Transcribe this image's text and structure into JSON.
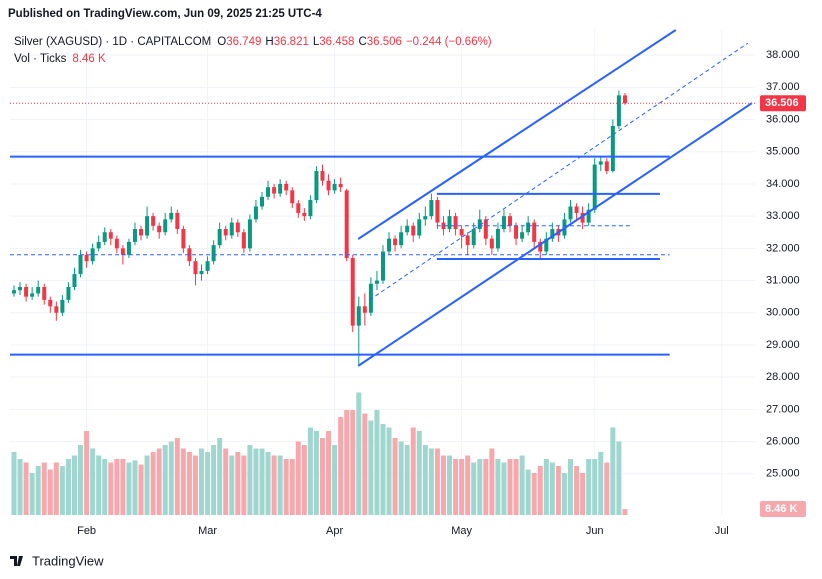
{
  "chart_data": {
    "type": "candlestick",
    "published": "Published on TradingView.com, Jun 09, 2025 21:25 UTC-4",
    "title": "Silver (XAGUSD) · 1D · CAPITALCOM",
    "ohlc_labels": [
      "O",
      "H",
      "L",
      "C"
    ],
    "change_label": "−0.244 (−0.66%)",
    "volume_title": "Vol · Ticks",
    "volume_label": "8.46 K",
    "footer": "TradingView",
    "up_color": "#089981",
    "down_color": "#f23645",
    "volume_up_color": "#9fd6cf",
    "volume_down_color": "#f7a8ad",
    "line_color": "#2962ff",
    "grid": true,
    "xlim": [
      -0.66,
      122.5
    ],
    "xticks": [
      {
        "value": 12,
        "label": "Feb"
      },
      {
        "value": 32,
        "label": "Mar"
      },
      {
        "value": 53,
        "label": "Apr"
      },
      {
        "value": 74,
        "label": "May"
      },
      {
        "value": 96,
        "label": "Jun"
      },
      {
        "value": 117,
        "label": "Jul"
      }
    ],
    "ylim": [
      23.72,
      38.78
    ],
    "yticks": [
      {
        "value": 25,
        "label": "25.000"
      },
      {
        "value": 26,
        "label": "26.000"
      },
      {
        "value": 27,
        "label": "27.000"
      },
      {
        "value": 28,
        "label": "28.000"
      },
      {
        "value": 29,
        "label": "29.000"
      },
      {
        "value": 30,
        "label": "30.000"
      },
      {
        "value": 31,
        "label": "31.000"
      },
      {
        "value": 32,
        "label": "32.000"
      },
      {
        "value": 33,
        "label": "33.000"
      },
      {
        "value": 34,
        "label": "34.000"
      },
      {
        "value": 35,
        "label": "35.000"
      },
      {
        "value": 36,
        "label": "36.000"
      },
      {
        "value": 37,
        "label": "37.000"
      },
      {
        "value": 38,
        "label": "38.000"
      }
    ],
    "volume_ylim": [
      0,
      200
    ],
    "ohlc": [
      [
        30.6,
        30.85,
        30.5,
        30.7
      ],
      [
        30.7,
        30.95,
        30.55,
        30.8
      ],
      [
        30.8,
        30.9,
        30.35,
        30.5
      ],
      [
        30.5,
        30.8,
        30.4,
        30.6
      ],
      [
        30.6,
        31.0,
        30.5,
        30.8
      ],
      [
        30.8,
        30.9,
        30.25,
        30.4
      ],
      [
        30.4,
        30.5,
        30.0,
        30.2
      ],
      [
        30.2,
        30.35,
        29.75,
        30.0
      ],
      [
        30.0,
        30.55,
        29.9,
        30.4
      ],
      [
        30.4,
        30.95,
        30.3,
        30.8
      ],
      [
        30.8,
        31.4,
        30.7,
        31.2
      ],
      [
        31.2,
        31.95,
        31.1,
        31.8
      ],
      [
        31.8,
        31.9,
        31.4,
        31.6
      ],
      [
        31.6,
        32.15,
        31.5,
        32.0
      ],
      [
        32.0,
        32.4,
        31.9,
        32.2
      ],
      [
        32.2,
        32.65,
        32.1,
        32.5
      ],
      [
        32.5,
        32.6,
        32.1,
        32.3
      ],
      [
        32.3,
        32.4,
        31.85,
        32.0
      ],
      [
        32.0,
        32.1,
        31.5,
        31.8
      ],
      [
        31.8,
        32.3,
        31.7,
        32.2
      ],
      [
        32.2,
        32.8,
        32.1,
        32.6
      ],
      [
        32.6,
        32.7,
        32.25,
        32.4
      ],
      [
        32.4,
        33.3,
        32.3,
        33.0
      ],
      [
        33.0,
        33.1,
        32.55,
        32.7
      ],
      [
        32.7,
        32.8,
        32.3,
        32.5
      ],
      [
        32.5,
        33.1,
        32.4,
        32.9
      ],
      [
        32.9,
        33.3,
        32.8,
        33.1
      ],
      [
        33.1,
        33.2,
        32.45,
        32.6
      ],
      [
        32.6,
        32.7,
        31.85,
        32.0
      ],
      [
        32.0,
        32.1,
        31.45,
        31.6
      ],
      [
        31.6,
        31.7,
        30.85,
        31.2
      ],
      [
        31.2,
        31.5,
        31.0,
        31.3
      ],
      [
        31.3,
        31.75,
        31.2,
        31.6
      ],
      [
        31.6,
        32.25,
        31.5,
        32.1
      ],
      [
        32.1,
        32.8,
        32.0,
        32.6
      ],
      [
        32.6,
        32.7,
        32.25,
        32.4
      ],
      [
        32.4,
        32.95,
        32.3,
        32.8
      ],
      [
        32.8,
        32.9,
        32.35,
        32.5
      ],
      [
        32.5,
        32.6,
        31.85,
        32.0
      ],
      [
        32.0,
        33.05,
        31.9,
        32.9
      ],
      [
        32.9,
        33.5,
        32.8,
        33.3
      ],
      [
        33.3,
        33.75,
        33.2,
        33.6
      ],
      [
        33.6,
        34.1,
        33.5,
        33.9
      ],
      [
        33.9,
        34.0,
        33.55,
        33.7
      ],
      [
        33.7,
        34.15,
        33.6,
        34.0
      ],
      [
        34.0,
        34.1,
        33.65,
        33.8
      ],
      [
        33.8,
        33.9,
        33.25,
        33.4
      ],
      [
        33.4,
        33.5,
        32.95,
        33.1
      ],
      [
        33.1,
        33.25,
        32.85,
        33.0
      ],
      [
        33.0,
        33.65,
        32.9,
        33.5
      ],
      [
        33.5,
        34.55,
        33.4,
        34.4
      ],
      [
        34.4,
        34.6,
        33.95,
        34.1
      ],
      [
        34.1,
        34.3,
        33.65,
        33.8
      ],
      [
        33.8,
        34.15,
        33.7,
        34.0
      ],
      [
        34.0,
        34.2,
        33.75,
        33.9
      ],
      [
        33.8,
        33.85,
        31.6,
        31.7
      ],
      [
        31.7,
        31.8,
        29.4,
        29.6
      ],
      [
        29.6,
        30.5,
        28.4,
        30.2
      ],
      [
        30.2,
        30.6,
        29.6,
        30.0
      ],
      [
        30.0,
        31.1,
        29.9,
        30.9
      ],
      [
        30.9,
        31.3,
        30.7,
        31.0
      ],
      [
        31.0,
        32.1,
        30.9,
        31.9
      ],
      [
        31.9,
        32.5,
        31.8,
        32.3
      ],
      [
        32.3,
        32.4,
        31.9,
        32.1
      ],
      [
        32.1,
        32.7,
        32.0,
        32.5
      ],
      [
        32.5,
        32.9,
        32.4,
        32.7
      ],
      [
        32.7,
        32.8,
        32.2,
        32.4
      ],
      [
        32.4,
        33.1,
        32.3,
        32.9
      ],
      [
        32.9,
        33.3,
        32.7,
        33.0
      ],
      [
        33.0,
        33.7,
        32.9,
        33.5
      ],
      [
        33.5,
        33.6,
        32.6,
        32.8
      ],
      [
        32.8,
        33.0,
        32.4,
        32.6
      ],
      [
        32.6,
        33.2,
        32.5,
        33.0
      ],
      [
        33.0,
        33.1,
        32.4,
        32.6
      ],
      [
        32.6,
        32.7,
        32.0,
        32.4
      ],
      [
        32.4,
        32.5,
        31.8,
        32.1
      ],
      [
        32.1,
        32.8,
        32.0,
        32.6
      ],
      [
        32.6,
        33.2,
        32.5,
        32.9
      ],
      [
        32.9,
        33.0,
        32.1,
        32.3
      ],
      [
        32.3,
        32.4,
        31.8,
        32.0
      ],
      [
        32.0,
        32.8,
        31.9,
        32.6
      ],
      [
        32.6,
        33.2,
        32.5,
        33.0
      ],
      [
        33.0,
        33.1,
        32.5,
        32.7
      ],
      [
        32.7,
        32.8,
        32.1,
        32.3
      ],
      [
        32.3,
        32.7,
        32.2,
        32.5
      ],
      [
        32.5,
        33.0,
        32.4,
        32.8
      ],
      [
        32.8,
        32.9,
        32.0,
        32.2
      ],
      [
        32.2,
        32.3,
        31.7,
        31.9
      ],
      [
        31.9,
        32.5,
        31.8,
        32.3
      ],
      [
        32.3,
        32.8,
        32.2,
        32.6
      ],
      [
        32.6,
        32.7,
        32.2,
        32.4
      ],
      [
        32.4,
        33.1,
        32.3,
        32.9
      ],
      [
        32.9,
        33.5,
        32.8,
        33.3
      ],
      [
        33.3,
        33.4,
        32.9,
        33.1
      ],
      [
        33.1,
        33.3,
        32.6,
        32.8
      ],
      [
        32.8,
        33.4,
        32.7,
        33.2
      ],
      [
        33.2,
        34.8,
        33.1,
        34.6
      ],
      [
        34.6,
        34.85,
        34.4,
        34.7
      ],
      [
        34.7,
        34.8,
        34.3,
        34.4
      ],
      [
        34.4,
        36.0,
        34.35,
        35.8
      ],
      [
        35.8,
        36.9,
        35.7,
        36.75
      ],
      [
        36.749,
        36.821,
        36.458,
        36.506
      ]
    ],
    "volume": [
      90,
      80,
      75,
      60,
      70,
      75,
      65,
      75,
      70,
      80,
      85,
      100,
      120,
      95,
      85,
      80,
      75,
      80,
      80,
      75,
      78,
      72,
      85,
      90,
      95,
      100,
      105,
      110,
      95,
      90,
      85,
      95,
      90,
      100,
      110,
      95,
      85,
      90,
      85,
      100,
      95,
      95,
      90,
      85,
      85,
      80,
      80,
      105,
      100,
      125,
      120,
      110,
      120,
      100,
      140,
      150,
      150,
      175,
      145,
      135,
      150,
      130,
      125,
      110,
      105,
      100,
      125,
      120,
      100,
      95,
      95,
      85,
      85,
      80,
      80,
      85,
      75,
      80,
      80,
      95,
      80,
      75,
      80,
      80,
      85,
      65,
      60,
      70,
      80,
      75,
      70,
      60,
      80,
      70,
      60,
      80,
      80,
      90,
      75,
      125,
      105,
      8.46
    ],
    "drawings": [
      {
        "style": "solid",
        "points": [
          [
            -0.66,
            34.85
          ],
          [
            108.4,
            34.85
          ]
        ]
      },
      {
        "style": "solid",
        "points": [
          [
            -0.66,
            28.7
          ],
          [
            108.4,
            28.7
          ]
        ]
      },
      {
        "style": "dashed",
        "points": [
          [
            -0.66,
            31.8
          ],
          [
            108.4,
            31.8
          ]
        ]
      },
      {
        "style": "solid",
        "points": [
          [
            56.9,
            32.29
          ],
          [
            109.4,
            38.78
          ]
        ]
      },
      {
        "style": "solid",
        "points": [
          [
            56.9,
            28.35
          ],
          [
            122,
            36.51
          ]
        ]
      },
      {
        "style": "dashed",
        "points": [
          [
            58.8,
            30.4
          ],
          [
            121.3,
            38.37
          ]
        ]
      },
      {
        "style": "solid",
        "points": [
          [
            69.9,
            33.69
          ],
          [
            106.8,
            33.69
          ]
        ]
      },
      {
        "style": "solid",
        "points": [
          [
            69.9,
            31.67
          ],
          [
            106.8,
            31.67
          ]
        ]
      },
      {
        "style": "dashed",
        "points": [
          [
            69.9,
            32.7
          ],
          [
            102,
            32.7
          ]
        ]
      }
    ]
  }
}
